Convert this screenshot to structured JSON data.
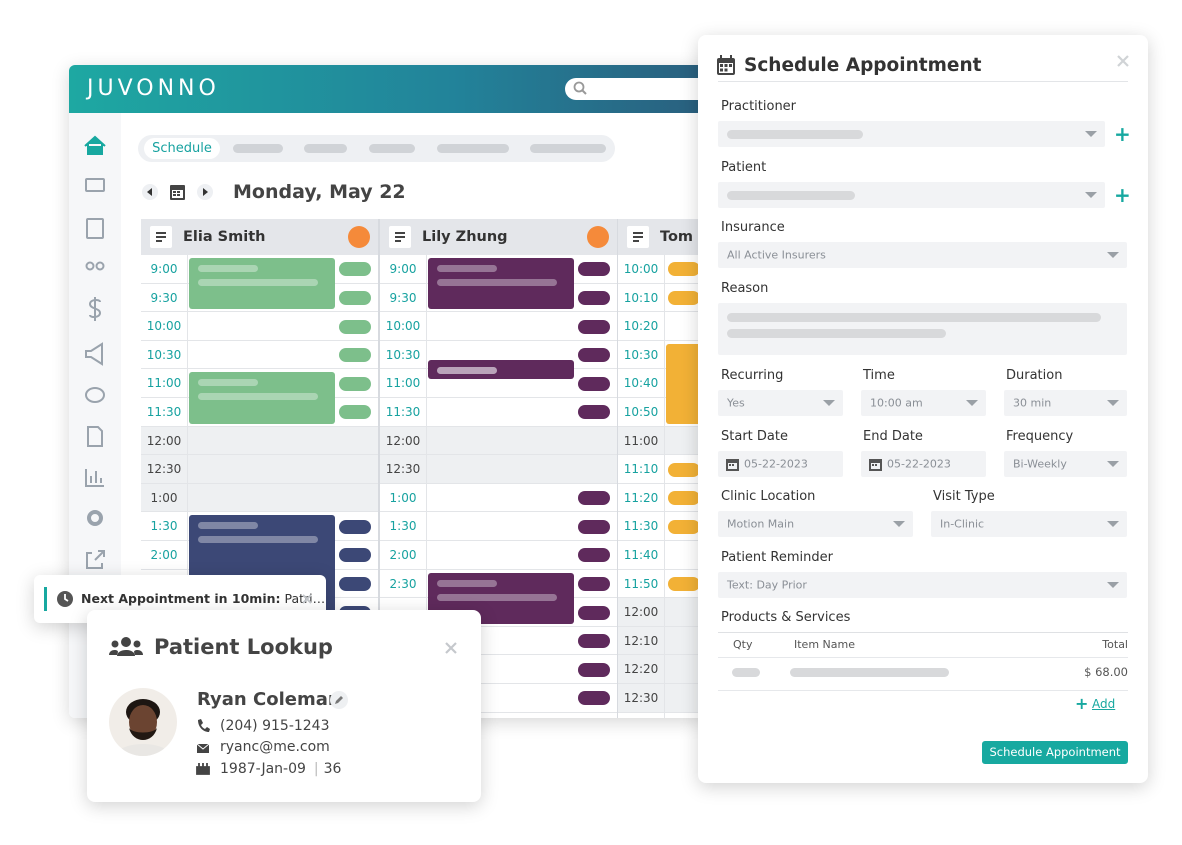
{
  "app": {
    "logo": "JUVONNO"
  },
  "schedule": {
    "tab": "Schedule",
    "date": "Monday, May 22",
    "columns": [
      {
        "name": "Elia Smith",
        "times": [
          "9:00",
          "9:30",
          "10:00",
          "10:30",
          "11:00",
          "11:30",
          "12:00",
          "12:30",
          "1:00",
          "1:30",
          "2:00"
        ]
      },
      {
        "name": "Lily Zhung",
        "times": [
          "9:00",
          "9:30",
          "10:00",
          "10:30",
          "11:00",
          "11:30",
          "12:00",
          "12:30",
          "1:00",
          "1:30",
          "2:00",
          "2:30"
        ]
      },
      {
        "name": "Tom H",
        "times": [
          "10:00",
          "10:10",
          "10:20",
          "10:30",
          "10:40",
          "10:50",
          "11:00",
          "11:10",
          "11:20",
          "11:30",
          "11:40",
          "11:50",
          "12:00",
          "12:10",
          "12:20",
          "12:30"
        ]
      }
    ]
  },
  "notification": {
    "label": "Next Appointment in 10min:",
    "text": "Patri…"
  },
  "lookup": {
    "title": "Patient Lookup",
    "name": "Ryan Coleman",
    "phone": "(204) 915-1243",
    "email": "ryanc@me.com",
    "dob": "1987-Jan-09",
    "age": "36"
  },
  "form": {
    "title": "Schedule Appointment",
    "practitioner": "Practitioner",
    "patient": "Patient",
    "insurance": {
      "label": "Insurance",
      "value": "All Active Insurers"
    },
    "reason": "Reason",
    "recurring": {
      "label": "Recurring",
      "value": "Yes"
    },
    "time": {
      "label": "Time",
      "value": "10:00 am"
    },
    "duration": {
      "label": "Duration",
      "value": "30 min"
    },
    "start_date": {
      "label": "Start Date",
      "value": "05-22-2023"
    },
    "end_date": {
      "label": "End Date",
      "value": "05-22-2023"
    },
    "frequency": {
      "label": "Frequency",
      "value": "Bi-Weekly"
    },
    "clinic_location": {
      "label": "Clinic Location",
      "value": "Motion Main"
    },
    "visit_type": {
      "label": "Visit Type",
      "value": "In-Clinic"
    },
    "patient_reminder": {
      "label": "Patient Reminder",
      "value": "Text: Day Prior"
    },
    "products": {
      "label": "Products & Services",
      "headers": [
        "Qty",
        "Item Name",
        "Total"
      ],
      "rows": [
        {
          "total": "$ 68.00"
        }
      ],
      "add": "Add"
    },
    "button": "Schedule Appointment"
  }
}
